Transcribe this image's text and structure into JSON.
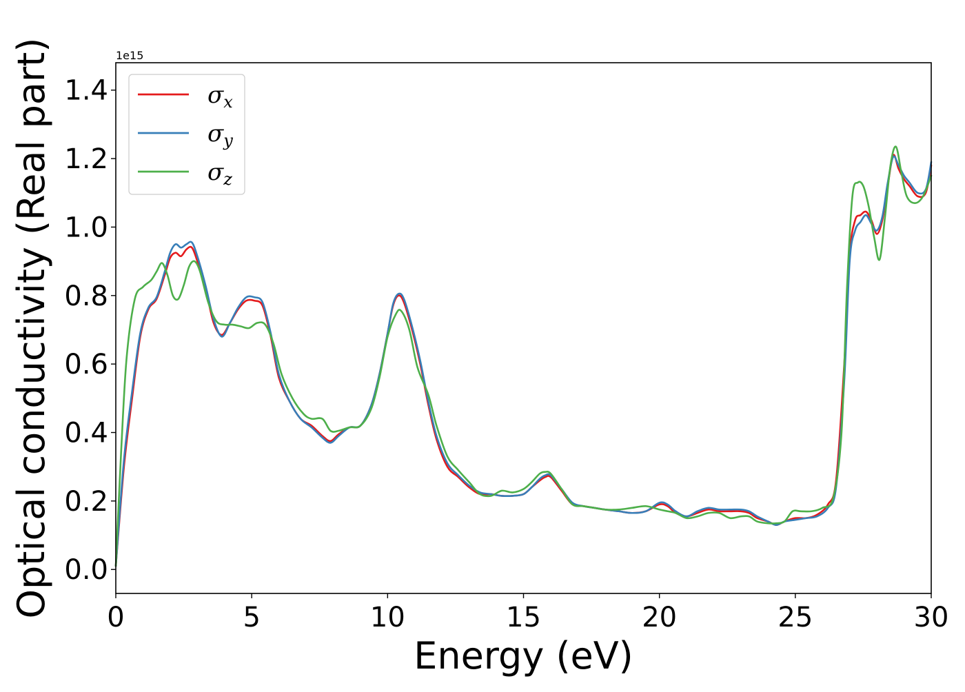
{
  "chart_data": {
    "type": "line",
    "xlabel": "Energy (eV)",
    "ylabel": "Optical conductivity (Real part)",
    "y_offset_label": "1e15",
    "xlim": [
      0,
      30
    ],
    "ylim": [
      -0.07,
      1.48
    ],
    "x_ticks": [
      0,
      5,
      10,
      15,
      20,
      25,
      30
    ],
    "x_tick_labels": [
      "0",
      "5",
      "10",
      "15",
      "20",
      "25",
      "30"
    ],
    "y_ticks": [
      0.0,
      0.2,
      0.4,
      0.6,
      0.8,
      1.0,
      1.2,
      1.4
    ],
    "y_tick_labels": [
      "0.0",
      "0.2",
      "0.4",
      "0.6",
      "0.8",
      "1.0",
      "1.2",
      "1.4"
    ],
    "grid": false,
    "legend_position": "top-left",
    "series": [
      {
        "name": "σ_x",
        "color": "#e41a1c",
        "x": [
          0,
          0.3,
          0.6,
          0.9,
          1.2,
          1.5,
          1.8,
          2.0,
          2.2,
          2.4,
          2.6,
          2.8,
          3.0,
          3.3,
          3.6,
          3.9,
          4.2,
          4.5,
          4.8,
          5.1,
          5.4,
          5.7,
          6.0,
          6.4,
          6.8,
          7.2,
          7.6,
          7.9,
          8.2,
          8.6,
          9.0,
          9.4,
          9.7,
          10.0,
          10.2,
          10.4,
          10.6,
          10.9,
          11.2,
          11.5,
          11.8,
          12.2,
          12.6,
          13.0,
          13.4,
          13.8,
          14.2,
          14.6,
          15.0,
          15.3,
          15.6,
          15.8,
          16.0,
          16.4,
          16.8,
          17.2,
          17.6,
          18.0,
          18.5,
          19.0,
          19.5,
          20.0,
          20.3,
          20.6,
          21.0,
          21.4,
          21.8,
          22.2,
          22.6,
          23.0,
          23.3,
          23.6,
          24.0,
          24.3,
          24.6,
          25.0,
          25.4,
          25.8,
          26.2,
          26.5,
          26.8,
          27.0,
          27.2,
          27.4,
          27.6,
          27.8,
          28.0,
          28.2,
          28.4,
          28.6,
          28.8,
          29.0,
          29.2,
          29.5,
          29.8,
          30.0
        ],
        "values": [
          0.01,
          0.3,
          0.5,
          0.68,
          0.76,
          0.79,
          0.86,
          0.91,
          0.925,
          0.915,
          0.935,
          0.94,
          0.9,
          0.82,
          0.72,
          0.685,
          0.72,
          0.76,
          0.785,
          0.785,
          0.77,
          0.68,
          0.56,
          0.49,
          0.44,
          0.42,
          0.39,
          0.375,
          0.395,
          0.415,
          0.42,
          0.48,
          0.57,
          0.69,
          0.77,
          0.8,
          0.78,
          0.7,
          0.6,
          0.48,
          0.38,
          0.3,
          0.27,
          0.24,
          0.22,
          0.22,
          0.215,
          0.215,
          0.22,
          0.24,
          0.26,
          0.27,
          0.27,
          0.23,
          0.19,
          0.185,
          0.18,
          0.175,
          0.17,
          0.165,
          0.17,
          0.19,
          0.185,
          0.165,
          0.155,
          0.165,
          0.175,
          0.17,
          0.17,
          0.17,
          0.165,
          0.15,
          0.14,
          0.13,
          0.14,
          0.15,
          0.15,
          0.16,
          0.19,
          0.26,
          0.6,
          0.92,
          1.02,
          1.035,
          1.045,
          1.02,
          0.98,
          1.02,
          1.12,
          1.21,
          1.17,
          1.14,
          1.12,
          1.09,
          1.1,
          1.18
        ]
      },
      {
        "name": "σ_y",
        "color": "#377eb8",
        "x": [
          0,
          0.3,
          0.6,
          0.9,
          1.2,
          1.5,
          1.8,
          2.0,
          2.2,
          2.4,
          2.6,
          2.8,
          3.0,
          3.3,
          3.6,
          3.9,
          4.2,
          4.5,
          4.8,
          5.1,
          5.4,
          5.7,
          6.0,
          6.4,
          6.8,
          7.2,
          7.6,
          7.9,
          8.2,
          8.6,
          9.0,
          9.4,
          9.7,
          10.0,
          10.2,
          10.4,
          10.6,
          10.9,
          11.2,
          11.5,
          11.8,
          12.2,
          12.6,
          13.0,
          13.4,
          13.8,
          14.2,
          14.6,
          15.0,
          15.3,
          15.6,
          15.8,
          16.0,
          16.4,
          16.8,
          17.2,
          17.6,
          18.0,
          18.5,
          19.0,
          19.5,
          20.0,
          20.3,
          20.6,
          21.0,
          21.4,
          21.8,
          22.2,
          22.6,
          23.0,
          23.3,
          23.6,
          24.0,
          24.3,
          24.6,
          25.0,
          25.4,
          25.8,
          26.2,
          26.5,
          26.8,
          27.0,
          27.2,
          27.4,
          27.6,
          27.8,
          28.0,
          28.2,
          28.4,
          28.6,
          28.8,
          29.0,
          29.2,
          29.5,
          29.8,
          30.0
        ],
        "values": [
          0.01,
          0.32,
          0.52,
          0.69,
          0.765,
          0.795,
          0.87,
          0.925,
          0.95,
          0.94,
          0.95,
          0.955,
          0.915,
          0.83,
          0.73,
          0.68,
          0.72,
          0.765,
          0.795,
          0.795,
          0.78,
          0.69,
          0.57,
          0.49,
          0.44,
          0.415,
          0.385,
          0.37,
          0.39,
          0.415,
          0.42,
          0.48,
          0.57,
          0.69,
          0.775,
          0.805,
          0.79,
          0.71,
          0.61,
          0.49,
          0.39,
          0.31,
          0.275,
          0.245,
          0.225,
          0.22,
          0.215,
          0.215,
          0.22,
          0.24,
          0.265,
          0.275,
          0.275,
          0.235,
          0.195,
          0.185,
          0.18,
          0.175,
          0.17,
          0.165,
          0.17,
          0.195,
          0.19,
          0.17,
          0.155,
          0.17,
          0.18,
          0.175,
          0.175,
          0.175,
          0.17,
          0.155,
          0.14,
          0.13,
          0.14,
          0.145,
          0.15,
          0.155,
          0.18,
          0.24,
          0.55,
          0.9,
          0.99,
          1.015,
          1.035,
          1.01,
          0.99,
          1.03,
          1.13,
          1.205,
          1.18,
          1.15,
          1.13,
          1.1,
          1.11,
          1.19
        ]
      },
      {
        "name": "σ_z",
        "color": "#4daf4a",
        "x": [
          0,
          0.2,
          0.4,
          0.7,
          1.0,
          1.3,
          1.5,
          1.7,
          1.9,
          2.1,
          2.3,
          2.5,
          2.7,
          2.9,
          3.1,
          3.4,
          3.7,
          4.0,
          4.3,
          4.6,
          4.9,
          5.2,
          5.5,
          5.8,
          6.1,
          6.5,
          6.9,
          7.2,
          7.6,
          7.9,
          8.2,
          8.6,
          9.0,
          9.4,
          9.7,
          10.0,
          10.3,
          10.5,
          10.8,
          11.1,
          11.5,
          11.8,
          12.2,
          12.6,
          13.0,
          13.4,
          13.8,
          14.2,
          14.6,
          15.0,
          15.3,
          15.6,
          15.8,
          16.0,
          16.4,
          16.8,
          17.2,
          17.6,
          18.0,
          18.5,
          19.0,
          19.5,
          20.0,
          20.3,
          20.6,
          21.0,
          21.4,
          21.8,
          22.2,
          22.6,
          23.0,
          23.3,
          23.6,
          24.0,
          24.3,
          24.6,
          24.9,
          25.2,
          25.6,
          26.0,
          26.4,
          26.7,
          26.9,
          27.1,
          27.3,
          27.5,
          27.7,
          27.9,
          28.1,
          28.3,
          28.5,
          28.7,
          28.9,
          29.1,
          29.4,
          29.7,
          30.0
        ],
        "values": [
          0.01,
          0.35,
          0.62,
          0.79,
          0.825,
          0.845,
          0.87,
          0.895,
          0.86,
          0.8,
          0.79,
          0.83,
          0.885,
          0.9,
          0.87,
          0.78,
          0.725,
          0.715,
          0.715,
          0.71,
          0.705,
          0.72,
          0.715,
          0.66,
          0.57,
          0.5,
          0.455,
          0.44,
          0.44,
          0.405,
          0.405,
          0.415,
          0.42,
          0.47,
          0.56,
          0.68,
          0.745,
          0.755,
          0.7,
          0.59,
          0.51,
          0.42,
          0.33,
          0.29,
          0.255,
          0.22,
          0.215,
          0.23,
          0.225,
          0.235,
          0.255,
          0.28,
          0.285,
          0.28,
          0.235,
          0.19,
          0.185,
          0.18,
          0.175,
          0.175,
          0.18,
          0.185,
          0.175,
          0.17,
          0.165,
          0.15,
          0.155,
          0.165,
          0.165,
          0.15,
          0.155,
          0.155,
          0.14,
          0.135,
          0.135,
          0.14,
          0.17,
          0.17,
          0.17,
          0.18,
          0.21,
          0.4,
          0.82,
          1.09,
          1.13,
          1.12,
          1.06,
          0.97,
          0.905,
          1.03,
          1.18,
          1.235,
          1.16,
          1.09,
          1.07,
          1.09,
          1.15
        ]
      }
    ]
  }
}
